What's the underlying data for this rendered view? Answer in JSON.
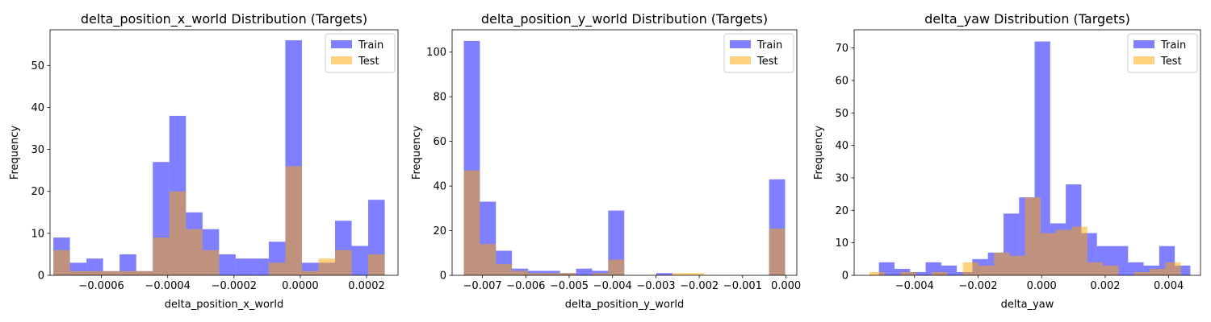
{
  "chart_data": [
    {
      "type": "histogram",
      "title": "delta_position_x_world Distribution (Targets)",
      "xlabel": "delta_position_x_world",
      "ylabel": "Frequency",
      "xlim": [
        -0.000755,
        0.000295
      ],
      "ylim": [
        0,
        58.5
      ],
      "xticks": [
        -0.0006,
        -0.0004,
        -0.0002,
        0.0,
        0.0002
      ],
      "xtick_labels": [
        "−0.0006",
        "−0.0004",
        "−0.0002",
        "0.0000",
        "0.0002"
      ],
      "yticks": [
        0,
        10,
        20,
        30,
        40,
        50
      ],
      "ytick_labels": [
        "0",
        "10",
        "20",
        "30",
        "40",
        "50"
      ],
      "legend": {
        "placement": "top-right",
        "entries": [
          "Train",
          "Test"
        ]
      },
      "series": [
        {
          "name": "Train",
          "color": "#0000ff",
          "opacity": 0.5,
          "bins": [
            [
              -0.000745,
              -0.000695,
              9
            ],
            [
              -0.000695,
              -0.000645,
              3
            ],
            [
              -0.000645,
              -0.000595,
              4
            ],
            [
              -0.000595,
              -0.000545,
              1
            ],
            [
              -0.000545,
              -0.000495,
              5
            ],
            [
              -0.000495,
              -0.000445,
              1
            ],
            [
              -0.000445,
              -0.000395,
              27
            ],
            [
              -0.000395,
              -0.000345,
              38
            ],
            [
              -0.000345,
              -0.000295,
              15
            ],
            [
              -0.000295,
              -0.000245,
              11
            ],
            [
              -0.000245,
              -0.000195,
              5
            ],
            [
              -0.000195,
              -0.000145,
              4
            ],
            [
              -0.000145,
              -9.5e-05,
              4
            ],
            [
              -9.5e-05,
              -4.5e-05,
              8
            ],
            [
              -4.5e-05,
              5e-06,
              56
            ],
            [
              5e-06,
              5.5e-05,
              3
            ],
            [
              5.5e-05,
              0.000105,
              3
            ],
            [
              0.000105,
              0.000155,
              13
            ],
            [
              0.000155,
              0.000205,
              7
            ],
            [
              0.000205,
              0.000255,
              18
            ]
          ]
        },
        {
          "name": "Test",
          "color": "#ffa500",
          "opacity": 0.5,
          "bins": [
            [
              -0.000745,
              -0.000695,
              6
            ],
            [
              -0.000695,
              -0.000645,
              1
            ],
            [
              -0.000645,
              -0.000595,
              1
            ],
            [
              -0.000595,
              -0.000545,
              1
            ],
            [
              -0.000545,
              -0.000495,
              1
            ],
            [
              -0.000495,
              -0.000445,
              1
            ],
            [
              -0.000445,
              -0.000395,
              9
            ],
            [
              -0.000395,
              -0.000345,
              20
            ],
            [
              -0.000345,
              -0.000295,
              11
            ],
            [
              -0.000295,
              -0.000245,
              6
            ],
            [
              -4.5e-05,
              5e-06,
              26
            ],
            [
              5e-06,
              5.5e-05,
              1
            ],
            [
              5.5e-05,
              0.000105,
              4
            ],
            [
              0.000105,
              0.000155,
              6
            ],
            [
              0.000205,
              0.000255,
              5
            ],
            [
              -9.5e-05,
              -4.5e-05,
              3
            ]
          ]
        }
      ]
    },
    {
      "type": "histogram",
      "title": "delta_position_y_world Distribution (Targets)",
      "xlabel": "delta_position_y_world",
      "ylabel": "Frequency",
      "xlim": [
        -0.0077,
        0.00025
      ],
      "ylim": [
        0,
        110
      ],
      "xticks": [
        -0.007,
        -0.006,
        -0.005,
        -0.004,
        -0.003,
        -0.002,
        -0.001,
        0.0
      ],
      "xtick_labels": [
        "−0.007",
        "−0.006",
        "−0.005",
        "−0.004",
        "−0.003",
        "−0.002",
        "−0.001",
        "0.000"
      ],
      "yticks": [
        0,
        20,
        40,
        60,
        80,
        100
      ],
      "ytick_labels": [
        "0",
        "20",
        "40",
        "60",
        "80",
        "100"
      ],
      "legend": {
        "placement": "top-right",
        "entries": [
          "Train",
          "Test"
        ]
      },
      "series": [
        {
          "name": "Train",
          "color": "#0000ff",
          "opacity": 0.5,
          "bins": [
            [
              -0.00743,
              -0.00706,
              105
            ],
            [
              -0.00706,
              -0.00669,
              33
            ],
            [
              -0.00669,
              -0.00632,
              11
            ],
            [
              -0.00632,
              -0.00595,
              3
            ],
            [
              -0.00595,
              -0.00558,
              2
            ],
            [
              -0.00558,
              -0.00521,
              2
            ],
            [
              -0.00521,
              -0.00484,
              1
            ],
            [
              -0.00484,
              -0.00447,
              3
            ],
            [
              -0.00447,
              -0.0041,
              2
            ],
            [
              -0.0041,
              -0.00373,
              29
            ],
            [
              -0.00299,
              -0.00262,
              1
            ],
            [
              -0.00039,
              -2e-05,
              43
            ]
          ]
        },
        {
          "name": "Test",
          "color": "#ffa500",
          "opacity": 0.5,
          "bins": [
            [
              -0.00743,
              -0.00706,
              47
            ],
            [
              -0.00706,
              -0.00669,
              14
            ],
            [
              -0.00669,
              -0.00632,
              5
            ],
            [
              -0.00632,
              -0.00595,
              2
            ],
            [
              -0.00595,
              -0.00558,
              1
            ],
            [
              -0.00558,
              -0.00521,
              1
            ],
            [
              -0.00521,
              -0.00484,
              1
            ],
            [
              -0.00447,
              -0.0041,
              1
            ],
            [
              -0.0041,
              -0.00373,
              7
            ],
            [
              -0.00262,
              -0.00225,
              1
            ],
            [
              -0.00225,
              -0.00188,
              1
            ],
            [
              -0.00039,
              -2e-05,
              21
            ]
          ]
        }
      ]
    },
    {
      "type": "histogram",
      "title": "delta_yaw Distribution (Targets)",
      "xlabel": "delta_yaw",
      "ylabel": "Frequency",
      "xlim": [
        -0.0059,
        0.005
      ],
      "ylim": [
        0,
        75.6
      ],
      "xticks": [
        -0.004,
        -0.002,
        0.0,
        0.002,
        0.004
      ],
      "xtick_labels": [
        "−0.004",
        "−0.002",
        "0.000",
        "0.002",
        "0.004"
      ],
      "yticks": [
        0,
        10,
        20,
        30,
        40,
        50,
        60,
        70
      ],
      "ytick_labels": [
        "0",
        "10",
        "20",
        "30",
        "40",
        "50",
        "60",
        "70"
      ],
      "legend": {
        "placement": "top-right",
        "entries": [
          "Train",
          "Test"
        ]
      },
      "series": [
        {
          "name": "Train",
          "color": "#0000ff",
          "opacity": 0.5,
          "bins": [
            [
              -0.00512,
              -0.00463,
              4
            ],
            [
              -0.00463,
              -0.00414,
              2
            ],
            [
              -0.00414,
              -0.00365,
              1
            ],
            [
              -0.00365,
              -0.00316,
              4
            ],
            [
              -0.00316,
              -0.00267,
              3
            ],
            [
              -0.00267,
              -0.00218,
              1
            ],
            [
              -0.00218,
              -0.00169,
              5
            ],
            [
              -0.00169,
              -0.0012,
              7
            ],
            [
              -0.0012,
              -0.00071,
              19
            ],
            [
              -0.00071,
              -0.00022,
              24
            ],
            [
              -0.00022,
              0.00027,
              72
            ],
            [
              0.00027,
              0.00076,
              16
            ],
            [
              0.00076,
              0.00125,
              28
            ],
            [
              0.00125,
              0.00174,
              13
            ],
            [
              0.00174,
              0.00223,
              9
            ],
            [
              0.00223,
              0.00272,
              9
            ],
            [
              0.00272,
              0.00321,
              4
            ],
            [
              0.00321,
              0.0037,
              3
            ],
            [
              0.0037,
              0.00419,
              9
            ],
            [
              0.00419,
              0.00468,
              3
            ]
          ]
        },
        {
          "name": "Test",
          "color": "#ffa500",
          "opacity": 0.5,
          "bins": [
            [
              -0.00542,
              -0.00493,
              1
            ],
            [
              -0.00444,
              -0.00395,
              1
            ],
            [
              -0.00346,
              -0.00297,
              1
            ],
            [
              -0.00248,
              -0.00199,
              4
            ],
            [
              -0.00199,
              -0.0015,
              3
            ],
            [
              -0.0015,
              -0.00101,
              7
            ],
            [
              -0.00101,
              -0.00052,
              6
            ],
            [
              -0.00052,
              -3e-05,
              24
            ],
            [
              -3e-05,
              0.00046,
              13
            ],
            [
              0.00046,
              0.00095,
              14
            ],
            [
              0.00095,
              0.00144,
              15
            ],
            [
              0.00144,
              0.00193,
              4
            ],
            [
              0.00193,
              0.00242,
              3
            ],
            [
              0.00291,
              0.0034,
              1
            ],
            [
              0.0034,
              0.00389,
              2
            ],
            [
              0.00389,
              0.00438,
              4
            ]
          ]
        }
      ]
    }
  ]
}
